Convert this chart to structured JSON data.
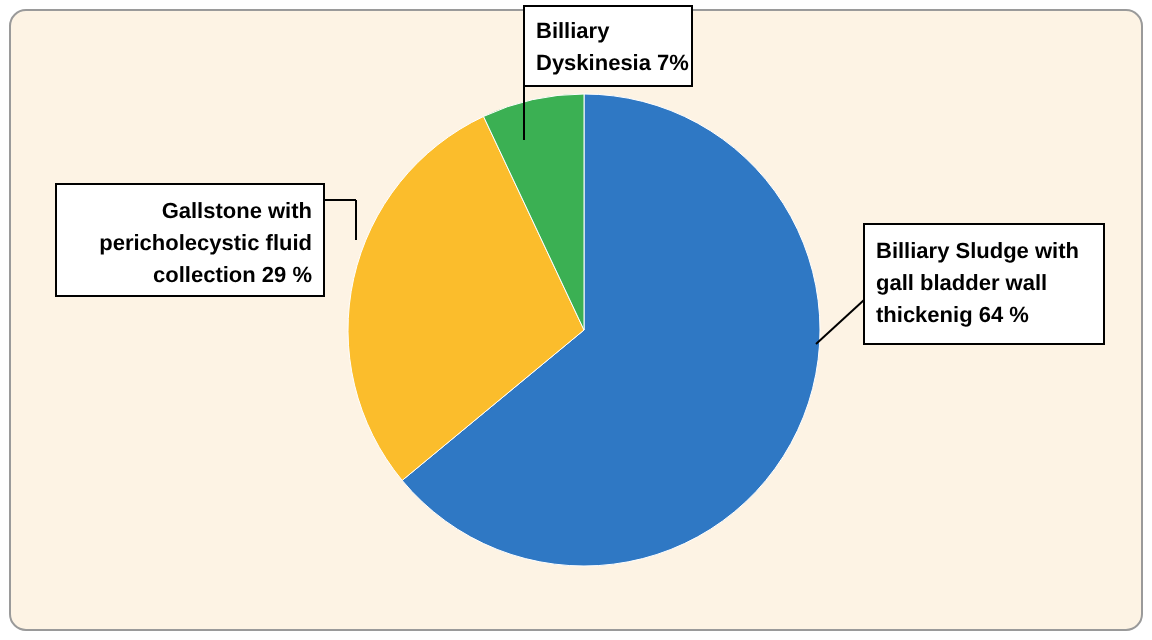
{
  "chart_data": {
    "type": "pie",
    "categories": [
      "Billiary Sludge with gall bladder wall thickenig",
      "Gallstone with pericholecystic fluid collection",
      "Billiary Dyskinesia"
    ],
    "values": [
      64,
      29,
      7
    ],
    "colors": [
      "#2f78c4",
      "#fbbd2c",
      "#3bb053"
    ],
    "value_labels": [
      "64 %",
      "29 %",
      "7%"
    ]
  }
}
